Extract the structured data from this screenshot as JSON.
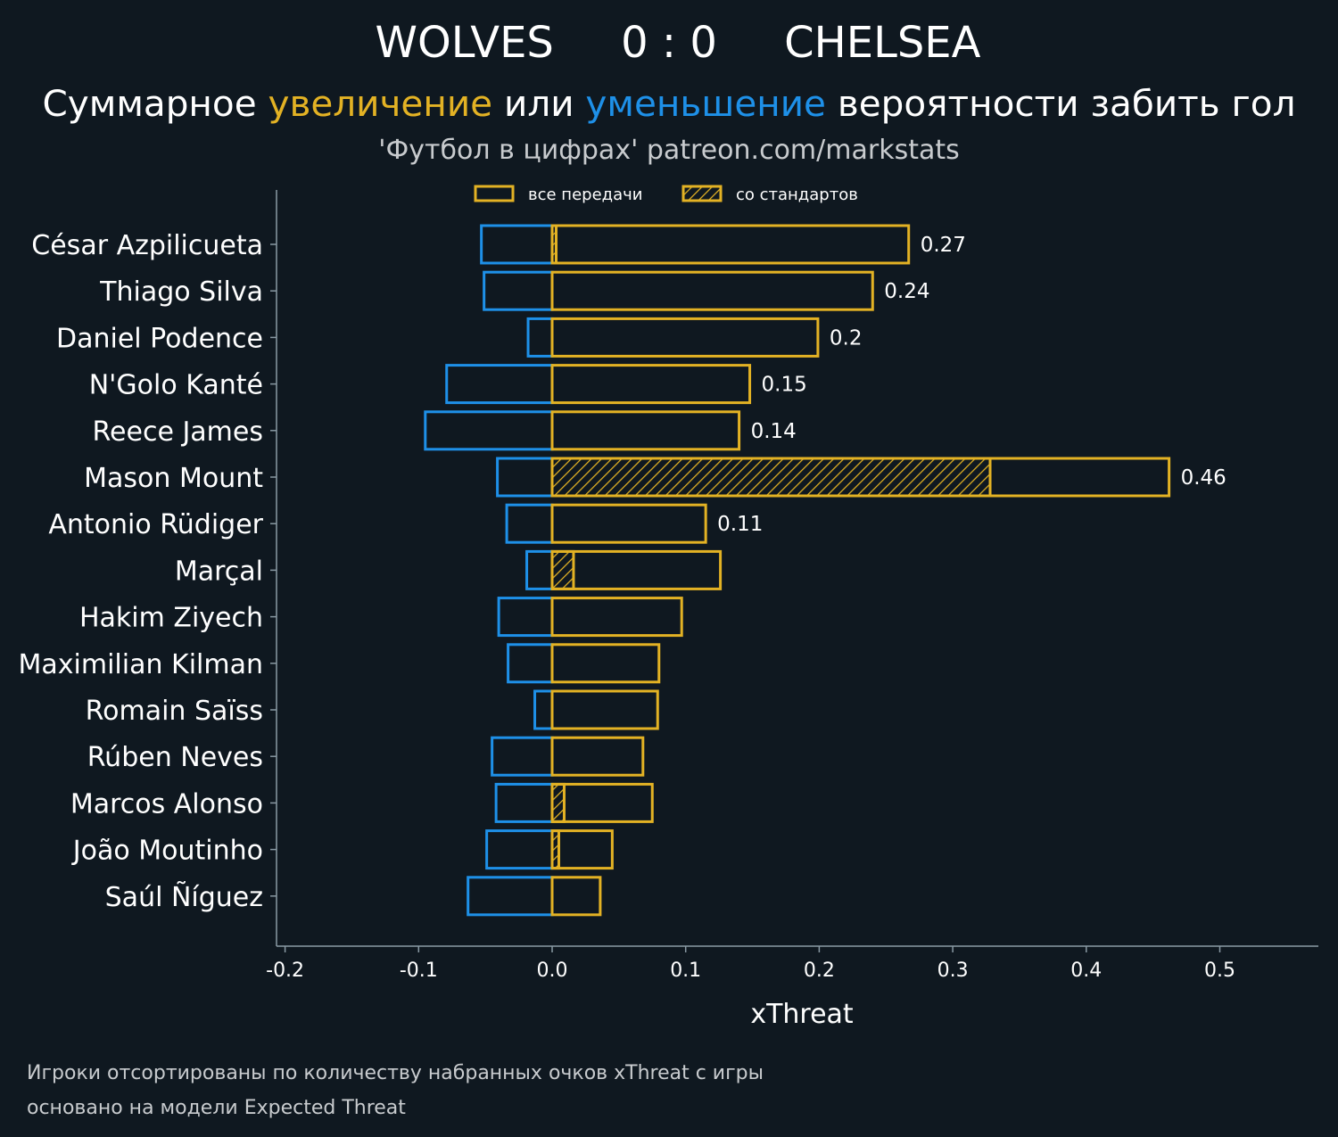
{
  "header": {
    "home": "WOLVES",
    "score": "0 : 0",
    "away": "CHELSEA",
    "subtitle_part1": "Суммарное ",
    "subtitle_increase": "увеличение",
    "subtitle_part2": " или ",
    "subtitle_decrease": "уменьшение",
    "subtitle_part3": " вероятности забить гол",
    "credit": "'Футбол в цифрах' patreon.com/markstats"
  },
  "legend": {
    "all_passes": "все передачи",
    "set_pieces": "со стандартов"
  },
  "footer": {
    "line1": "Игроки отсортированы по количеству набранных очков xThreat с игры",
    "line2": "основано на модели Expected Threat"
  },
  "colors": {
    "positive": "#e3b224",
    "negative": "#1e90e8",
    "background": "#0f1820",
    "axis": "#8a9aa4"
  },
  "chart_data": {
    "type": "bar",
    "orientation": "horizontal",
    "xlabel": "xThreat",
    "xlim": [
      -0.205,
      0.575
    ],
    "xticks": [
      -0.2,
      -0.1,
      0.0,
      0.1,
      0.2,
      0.3,
      0.4,
      0.5
    ],
    "xtick_labels": [
      "-0.2",
      "-0.1",
      "0.0",
      "0.1",
      "0.2",
      "0.3",
      "0.4",
      "0.5"
    ],
    "categories": [
      "César Azpilicueta",
      "Thiago Silva",
      "Daniel Podence",
      "N'Golo Kanté",
      "Reece James",
      "Mason Mount",
      "Antonio Rüdiger",
      "Marçal",
      "Hakim Ziyech",
      "Maximilian Kilman",
      "Romain Saïss",
      "Rúben Neves",
      "Marcos Alonso",
      "João Moutinho",
      "Saúl Ñíguez"
    ],
    "series": [
      {
        "name": "increase (все передачи)",
        "values": [
          0.267,
          0.24,
          0.199,
          0.148,
          0.14,
          0.462,
          0.115,
          0.126,
          0.097,
          0.08,
          0.079,
          0.068,
          0.075,
          0.045,
          0.036
        ]
      },
      {
        "name": "decrease (все передачи)",
        "values": [
          -0.053,
          -0.051,
          -0.018,
          -0.079,
          -0.095,
          -0.041,
          -0.034,
          -0.019,
          -0.04,
          -0.033,
          -0.013,
          -0.045,
          -0.042,
          -0.049,
          -0.063
        ]
      },
      {
        "name": "со стандартов",
        "values": [
          0.003,
          0.0,
          0.0,
          0.0,
          0.0,
          0.328,
          0.0,
          0.016,
          0.0,
          0.0,
          0.0,
          0.0,
          0.009,
          0.005,
          0.0
        ]
      }
    ],
    "net_labels": [
      "0.27",
      "0.24",
      "0.2",
      "0.15",
      "0.14",
      "0.46",
      "0.11",
      "",
      "",
      "",
      "",
      "",
      "",
      "",
      ""
    ]
  }
}
